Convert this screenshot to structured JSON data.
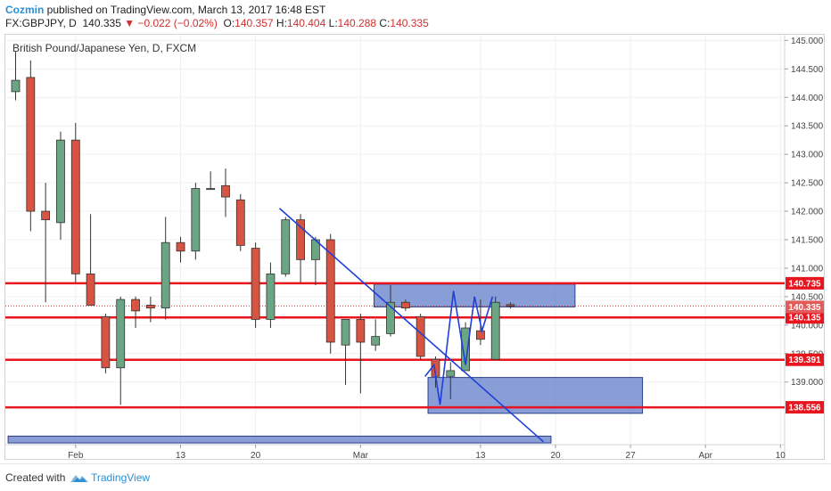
{
  "header": {
    "author": "Cozmin",
    "published": " published on TradingView.com, March 13, 2017 16:48 EST",
    "symbol": "FX:GBPJPY, D",
    "last": "140.335",
    "change": "▼ −0.022 (−0.02%)",
    "o_label": "O:",
    "o_value": "140.357",
    "h_label": "H:",
    "h_value": "140.404",
    "l_label": "L:",
    "l_value": "140.288",
    "c_label": "C:",
    "c_value": "140.335"
  },
  "footer": {
    "created_with": "Created with",
    "brand": "TradingView"
  },
  "colors": {
    "up": "#6ba583",
    "down": "#d75442",
    "level": "#e8141e",
    "zone_fill": "#5b78c8",
    "trend": "#1f3fd8",
    "axis_text": "#444444"
  },
  "chart_data": {
    "type": "candlestick",
    "title": "British Pound/Japanese Yen, D, FXCM",
    "ylim": [
      137.9,
      145.1
    ],
    "y_ticks": [
      "145.000",
      "144.500",
      "144.000",
      "143.500",
      "143.000",
      "142.500",
      "142.000",
      "141.500",
      "141.000",
      "140.500",
      "140.000",
      "139.500",
      "139.000"
    ],
    "x_ticks": [
      {
        "label": "Feb",
        "i": 4
      },
      {
        "label": "13",
        "i": 11
      },
      {
        "label": "20",
        "i": 16
      },
      {
        "label": "Mar",
        "i": 23
      },
      {
        "label": "13",
        "i": 31
      },
      {
        "label": "20",
        "i": 36
      },
      {
        "label": "27",
        "i": 41
      },
      {
        "label": "Apr",
        "i": 46
      },
      {
        "label": "10",
        "i": 51
      }
    ],
    "candles": [
      {
        "o": 144.1,
        "h": 144.8,
        "l": 143.95,
        "c": 144.3
      },
      {
        "o": 144.35,
        "h": 144.65,
        "l": 141.65,
        "c": 142.0
      },
      {
        "o": 142.0,
        "h": 142.5,
        "l": 140.4,
        "c": 141.85
      },
      {
        "o": 141.8,
        "h": 143.4,
        "l": 141.5,
        "c": 143.25
      },
      {
        "o": 143.25,
        "h": 143.55,
        "l": 140.75,
        "c": 140.9
      },
      {
        "o": 140.9,
        "h": 141.95,
        "l": 140.35,
        "c": 140.35
      },
      {
        "o": 140.15,
        "h": 140.2,
        "l": 139.15,
        "c": 139.25
      },
      {
        "o": 139.25,
        "h": 140.5,
        "l": 138.6,
        "c": 140.45
      },
      {
        "o": 140.45,
        "h": 140.5,
        "l": 139.95,
        "c": 140.25
      },
      {
        "o": 140.35,
        "h": 140.5,
        "l": 140.05,
        "c": 140.3
      },
      {
        "o": 140.3,
        "h": 141.9,
        "l": 140.1,
        "c": 141.45
      },
      {
        "o": 141.45,
        "h": 141.55,
        "l": 141.1,
        "c": 141.3
      },
      {
        "o": 141.3,
        "h": 142.5,
        "l": 141.15,
        "c": 142.4
      },
      {
        "o": 142.4,
        "h": 142.7,
        "l": 142.4,
        "c": 142.4
      },
      {
        "o": 142.45,
        "h": 142.75,
        "l": 141.9,
        "c": 142.25
      },
      {
        "o": 142.2,
        "h": 142.3,
        "l": 141.3,
        "c": 141.4
      },
      {
        "o": 141.35,
        "h": 141.45,
        "l": 139.95,
        "c": 140.1
      },
      {
        "o": 140.1,
        "h": 141.1,
        "l": 139.95,
        "c": 140.9
      },
      {
        "o": 140.9,
        "h": 141.9,
        "l": 140.85,
        "c": 141.85
      },
      {
        "o": 141.85,
        "h": 141.95,
        "l": 140.75,
        "c": 141.15
      },
      {
        "o": 141.15,
        "h": 141.55,
        "l": 140.7,
        "c": 141.5
      },
      {
        "o": 141.5,
        "h": 141.6,
        "l": 139.5,
        "c": 139.7
      },
      {
        "o": 139.65,
        "h": 140.05,
        "l": 138.95,
        "c": 140.1
      },
      {
        "o": 140.1,
        "h": 140.2,
        "l": 138.8,
        "c": 139.7
      },
      {
        "o": 139.65,
        "h": 140.1,
        "l": 139.55,
        "c": 139.8
      },
      {
        "o": 139.85,
        "h": 140.7,
        "l": 139.8,
        "c": 140.4
      },
      {
        "o": 140.4,
        "h": 140.45,
        "l": 140.25,
        "c": 140.3
      },
      {
        "o": 140.15,
        "h": 140.2,
        "l": 139.4,
        "c": 139.45
      },
      {
        "o": 139.4,
        "h": 139.45,
        "l": 138.9,
        "c": 139.1
      },
      {
        "o": 139.1,
        "h": 139.35,
        "l": 138.7,
        "c": 139.2
      },
      {
        "o": 139.2,
        "h": 140.05,
        "l": 139.2,
        "c": 139.95
      },
      {
        "o": 139.9,
        "h": 140.45,
        "l": 139.65,
        "c": 139.75
      },
      {
        "o": 139.4,
        "h": 140.5,
        "l": 139.4,
        "c": 140.4
      },
      {
        "o": 140.36,
        "h": 140.4,
        "l": 140.29,
        "c": 140.335
      }
    ],
    "level_lines": [
      {
        "label": "140.735",
        "value": 140.735
      },
      {
        "label": "140.135",
        "value": 140.135
      },
      {
        "label": "139.391",
        "value": 139.391
      },
      {
        "label": "138.556",
        "value": 138.556
      }
    ],
    "last_price": {
      "label": "140.335",
      "value": 140.335
    },
    "zones": [
      {
        "x0": 23.9,
        "x1": 37.3,
        "y0": 140.32,
        "y1": 140.72
      },
      {
        "x0": 27.5,
        "x1": 41.8,
        "y0": 138.45,
        "y1": 139.08
      },
      {
        "x0": -0.5,
        "x1": 35.7,
        "y0": 137.93,
        "y1": 138.05
      }
    ],
    "trendlines": [
      {
        "x0": 17.6,
        "y0": 142.05,
        "x1": 35.2,
        "y1": 137.95
      }
    ],
    "pattern": [
      {
        "i": 27.3,
        "v": 139.1
      },
      {
        "i": 27.9,
        "v": 139.3
      },
      {
        "i": 28.3,
        "v": 138.6
      },
      {
        "i": 29.2,
        "v": 140.6
      },
      {
        "i": 30.0,
        "v": 139.3
      },
      {
        "i": 30.6,
        "v": 140.5
      },
      {
        "i": 31.1,
        "v": 139.9
      },
      {
        "i": 31.8,
        "v": 140.5
      }
    ]
  }
}
